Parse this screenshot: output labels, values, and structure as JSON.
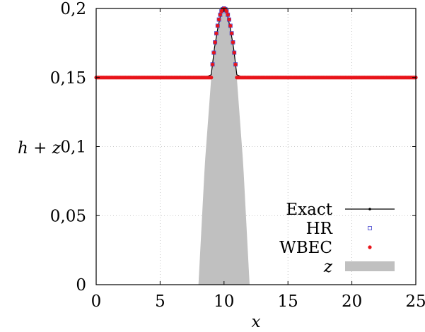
{
  "chart_data": {
    "type": "line",
    "title": "",
    "xlabel": "x",
    "ylabel": "h + z",
    "xlim": [
      0,
      25
    ],
    "ylim": [
      0,
      0.2
    ],
    "xticks": [
      0,
      5,
      10,
      15,
      20,
      25
    ],
    "xtick_labels": [
      "0",
      "5",
      "10",
      "15",
      "20",
      "25"
    ],
    "yticks": [
      0,
      0.05,
      0.1,
      0.15,
      0.2
    ],
    "ytick_labels": [
      "0",
      "0,05",
      "0,1",
      "0,15",
      "0,2"
    ],
    "grid": true,
    "legend_position": "bottom-right",
    "series": [
      {
        "name": "Exact",
        "style": "line-dot",
        "color": "#000000",
        "x": [
          0,
          8,
          8.5,
          9,
          9.25,
          9.5,
          9.75,
          10,
          10.25,
          10.5,
          10.75,
          11,
          11.5,
          12,
          25
        ],
        "y": [
          0.15,
          0.15,
          0.15,
          0.152,
          0.17125,
          0.185,
          0.19625,
          0.2,
          0.19625,
          0.185,
          0.17125,
          0.152,
          0.15,
          0.15,
          0.15
        ]
      },
      {
        "name": "HR",
        "style": "open-square",
        "color": "#3a3acc",
        "x": [
          9.1,
          9.2,
          9.3,
          9.4,
          9.5,
          9.6,
          9.7,
          9.8,
          9.9,
          10,
          10.1,
          10.2,
          10.3,
          10.4,
          10.5,
          10.6,
          10.7,
          10.8,
          10.9
        ],
        "y": [
          0.1595,
          0.168,
          0.1755,
          0.182,
          0.1875,
          0.192,
          0.1955,
          0.198,
          0.1995,
          0.2,
          0.1995,
          0.198,
          0.1955,
          0.192,
          0.1875,
          0.182,
          0.1755,
          0.168,
          0.1595
        ]
      },
      {
        "name": "WBEC",
        "style": "filled-dot",
        "color": "#e8141a",
        "x_start": 0,
        "x_end": 25,
        "x_step": 0.1,
        "y_flat": 0.15,
        "bump": {
          "center": 10,
          "half_width": 1,
          "peak": 0.2,
          "formula": "0.2 - 0.05*(x-10)^2",
          "applies_where_above": 0.15
        }
      },
      {
        "name": "z",
        "style": "area",
        "color": "#c0c0c0",
        "x": [
          8,
          8.5,
          9,
          9.5,
          10,
          10.5,
          11,
          11.5,
          12
        ],
        "y": [
          0,
          0.0875,
          0.15,
          0.1875,
          0.2,
          0.1875,
          0.15,
          0.0875,
          0
        ]
      }
    ]
  }
}
